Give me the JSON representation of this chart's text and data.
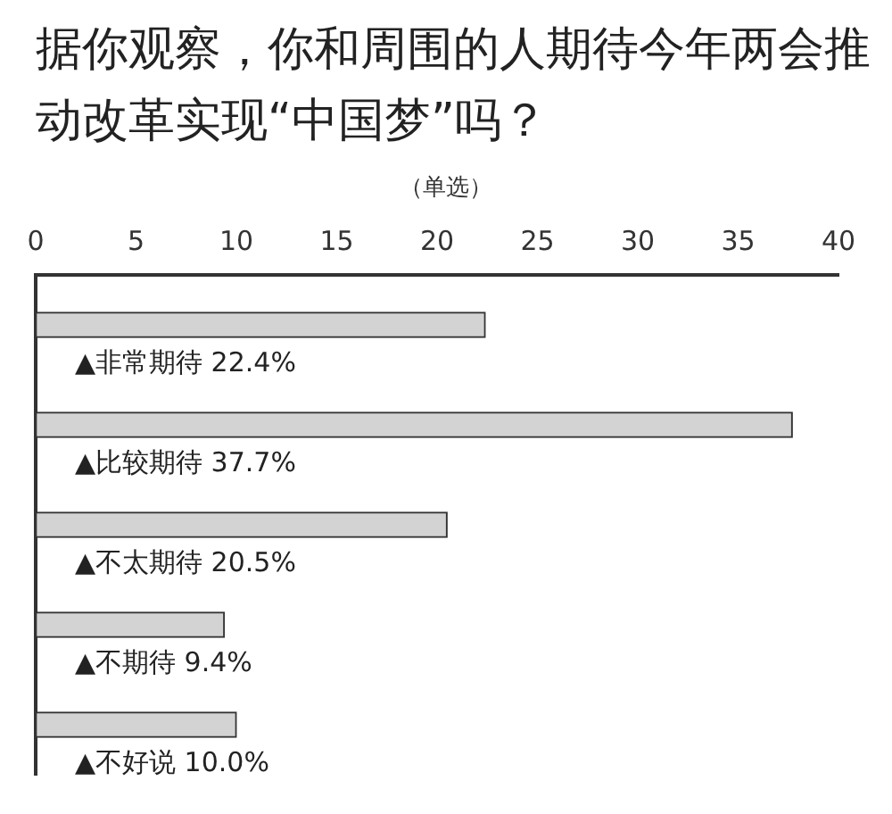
{
  "chart_data": {
    "type": "bar",
    "orientation": "horizontal",
    "title": "据你观察，你和周围的人期待今年两会推动改革实现“中国梦”吗？",
    "subtitle": "（单选）",
    "categories": [
      "▲非常期待",
      "▲比较期待",
      "▲不太期待",
      "▲不期待",
      "▲不好说"
    ],
    "values": [
      22.4,
      37.7,
      20.5,
      9.4,
      10.0
    ],
    "value_labels": [
      "22.4%",
      "37.7%",
      "20.5%",
      "9.4%",
      "10.0%"
    ],
    "color": "#d3d3d3",
    "xlim": [
      0,
      40
    ],
    "xticks": [
      0,
      5,
      10,
      15,
      20,
      25,
      30,
      35,
      40
    ],
    "grid": false,
    "legend": false,
    "tick_labels": "x"
  }
}
